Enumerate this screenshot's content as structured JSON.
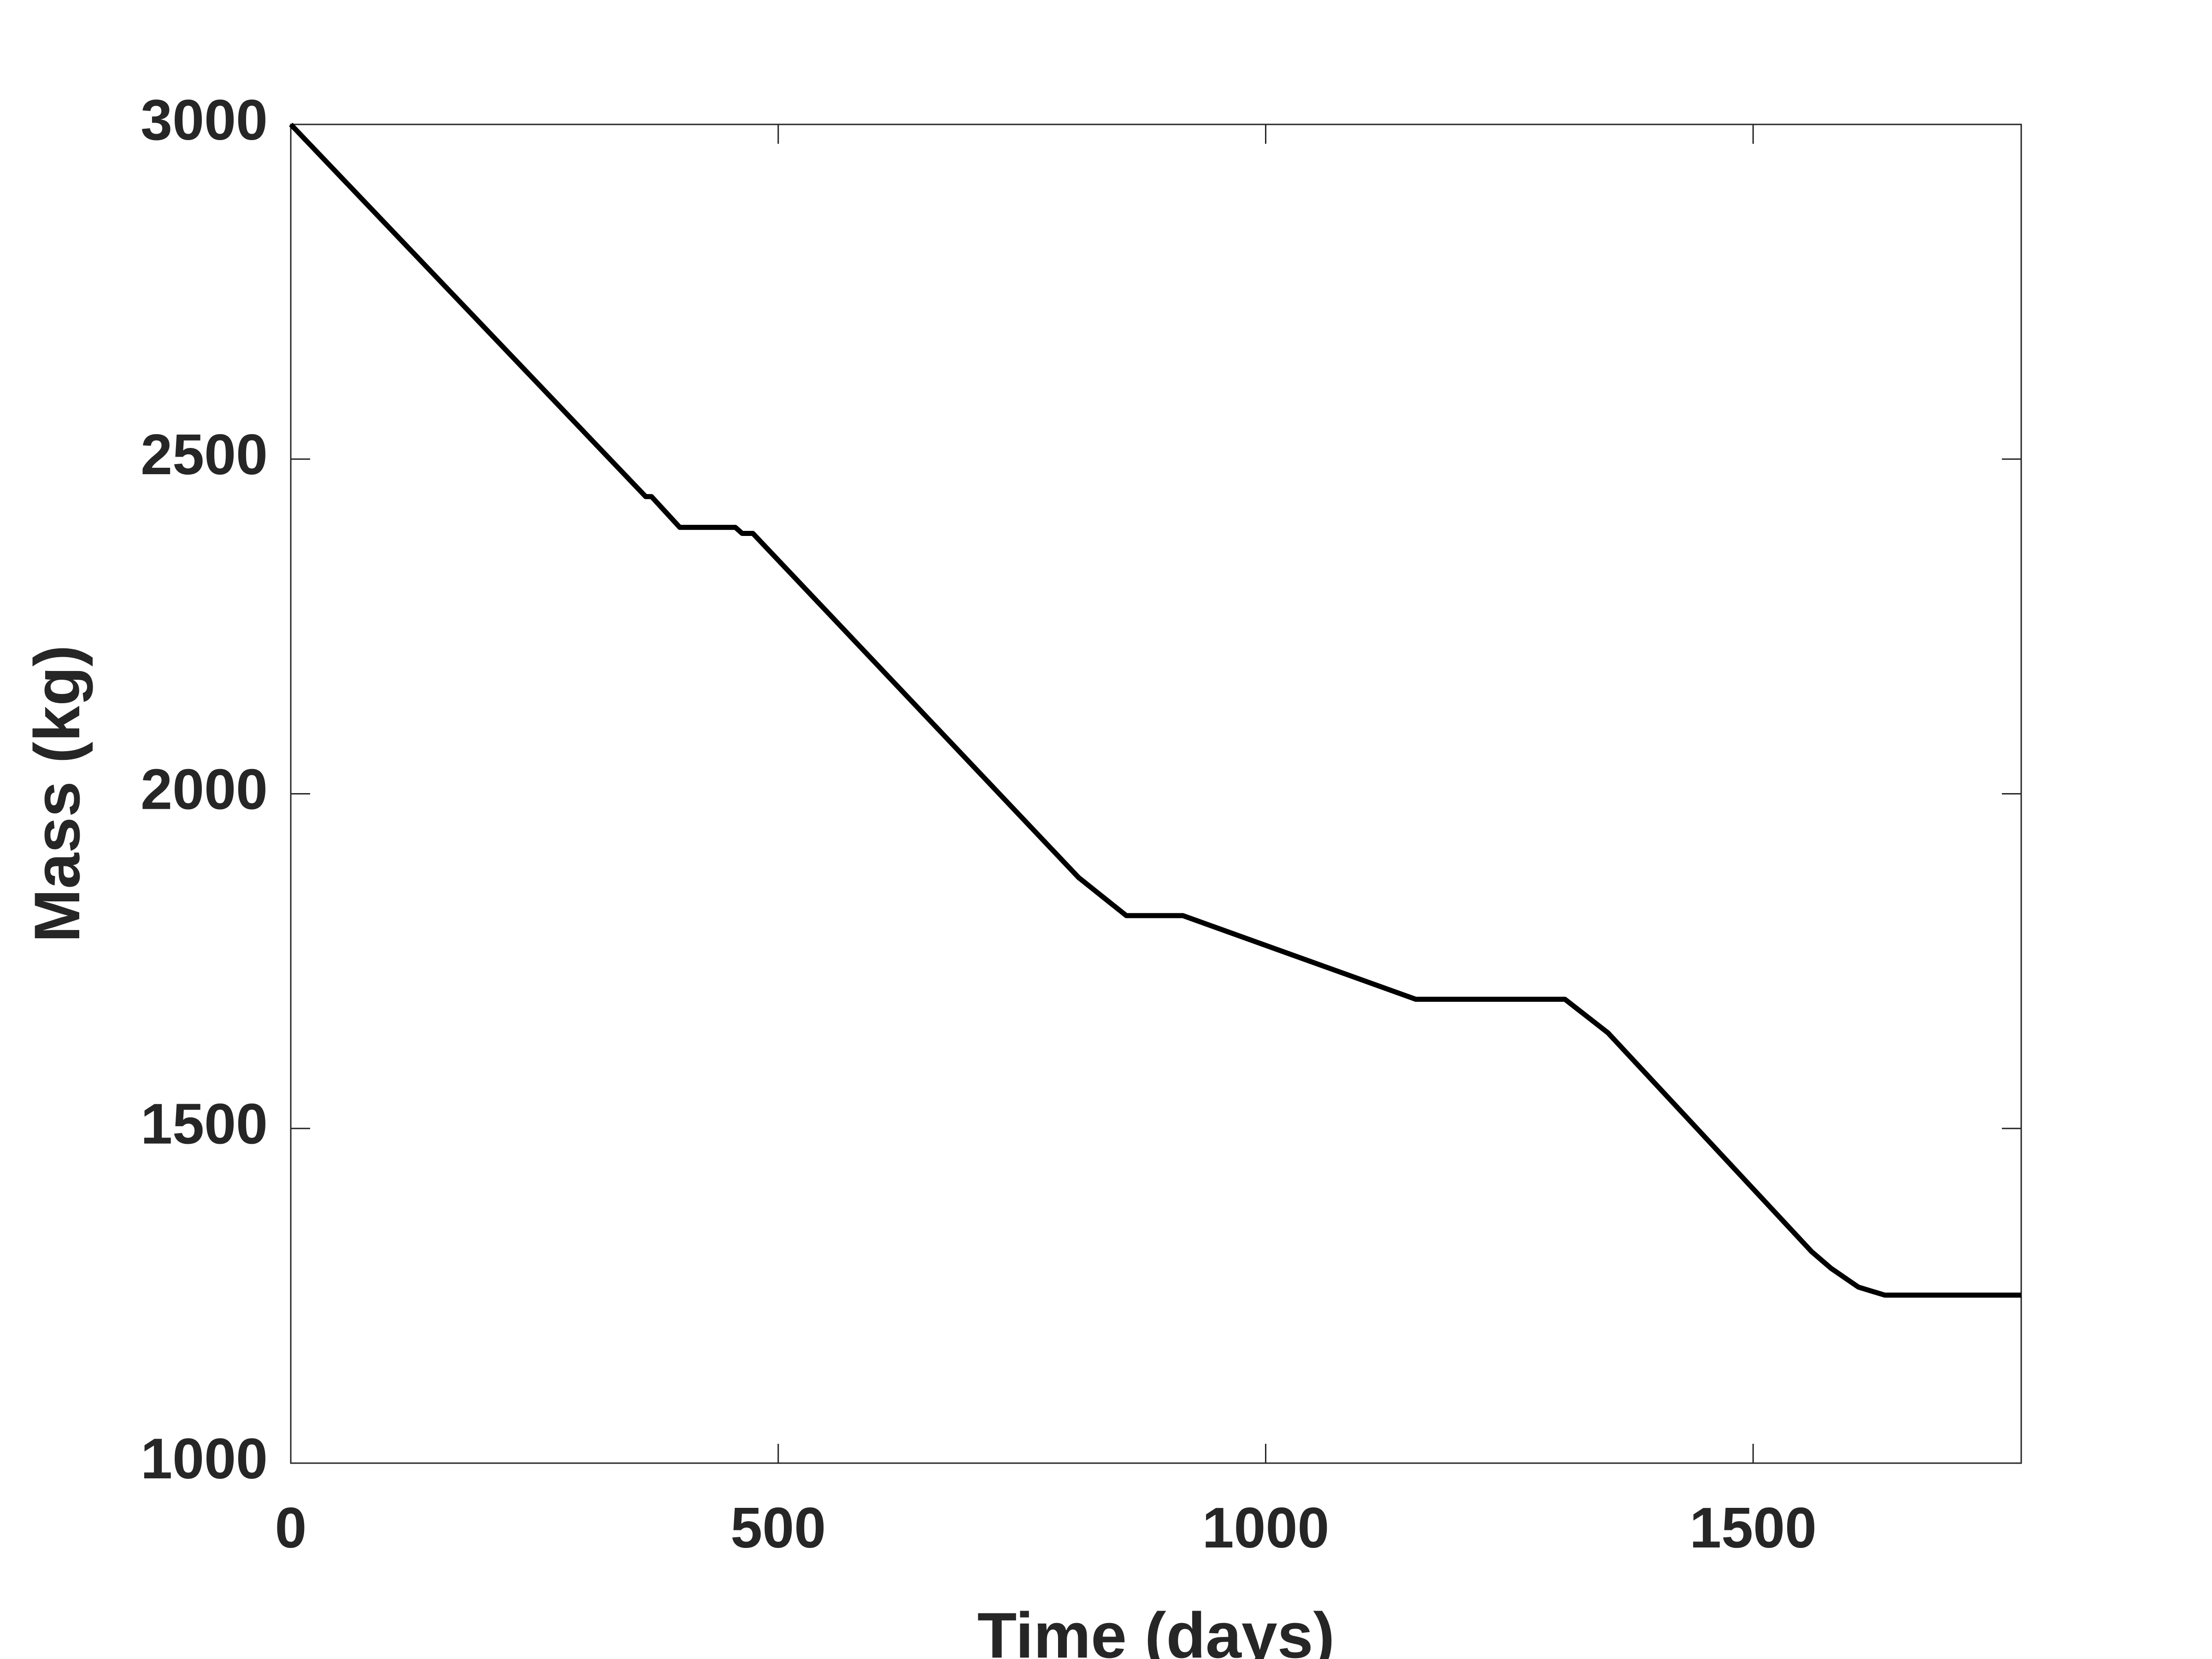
{
  "chart_data": {
    "type": "line",
    "xlabel": "Time (days)",
    "ylabel": "Mass (kg)",
    "x": [
      0,
      364,
      370,
      399,
      456,
      463,
      474,
      808,
      857,
      915,
      1154,
      1307,
      1351,
      1560,
      1580,
      1608,
      1635,
      1775
    ],
    "series": [
      {
        "color": "#000000",
        "values": [
          3000,
          2444,
          2444,
          2398,
          2398,
          2389,
          2389,
          1875,
          1818,
          1818,
          1693,
          1693,
          1643,
          1316,
          1291,
          1263,
          1251,
          1251
        ]
      }
    ],
    "xlim": [
      0,
      1775
    ],
    "xticks": [
      0,
      500,
      1000,
      1500
    ],
    "ylim": [
      1000,
      3000
    ],
    "yticks": [
      1000,
      1500,
      2000,
      2500,
      3000
    ]
  }
}
